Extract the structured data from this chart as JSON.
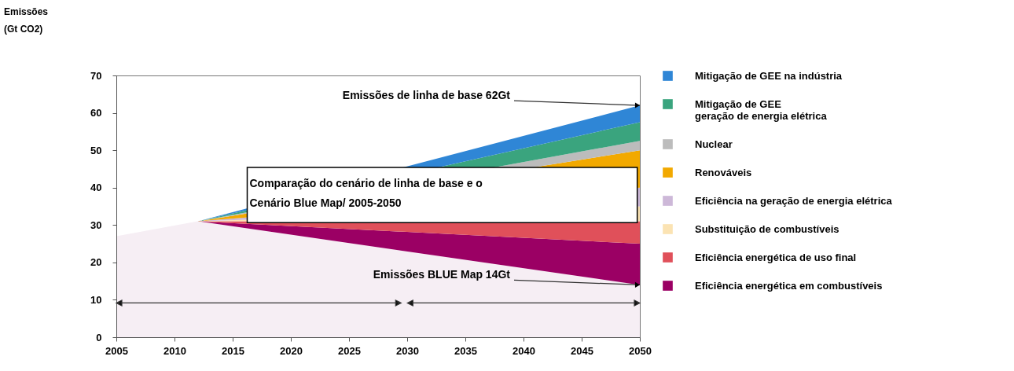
{
  "chart_data": {
    "type": "area",
    "stacked": true,
    "x": [
      2005,
      2012,
      2050
    ],
    "xlim": [
      2005,
      2050
    ],
    "xticks": [
      2005,
      2010,
      2015,
      2020,
      2025,
      2030,
      2035,
      2040,
      2045,
      2050
    ],
    "ylim": [
      0,
      70
    ],
    "yticks": [
      0,
      10,
      20,
      30,
      40,
      50,
      60,
      70
    ],
    "grid": false,
    "legend": "right",
    "series": [
      {
        "color": "#f6eef4",
        "values": [
          27,
          31,
          14
        ]
      },
      {
        "name": "Eficiência energética em combustíveis",
        "color": "#9b0064",
        "values": [
          0,
          0,
          11
        ]
      },
      {
        "name": "Eficiência energética de uso final",
        "color": "#e0505a",
        "values": [
          0,
          0,
          6
        ]
      },
      {
        "name": "Substituição de combustíveis",
        "color": "#fbe3b3",
        "values": [
          0,
          0,
          4
        ]
      },
      {
        "name": "Eficiência na geração de energia elétrica",
        "color": "#cdb8d8",
        "values": [
          0,
          0,
          5
        ]
      },
      {
        "name": "Renováveis",
        "color": "#f2a900",
        "values": [
          0,
          0,
          10
        ]
      },
      {
        "name": "Nuclear",
        "color": "#bcbcbc",
        "values": [
          0,
          0,
          2.5
        ]
      },
      {
        "name": "Mitigação de GEE\ngeração de energia elétrica",
        "color": "#3aa47e",
        "values": [
          0,
          0,
          5
        ]
      },
      {
        "name": "Mitigação de GEE na indústria",
        "color": "#2f86d6",
        "values": [
          0,
          0,
          4.5
        ]
      }
    ],
    "annotations": [
      "Emissões\n(Gt CO2)",
      {
        "text": "Emissões de linha de base 62Gt",
        "x": 2050,
        "y": 62
      },
      {
        "text": "Emissões BLUE Map 14Gt",
        "x": 2050,
        "y": 14
      },
      "Comparação do cenário de linha de base e o\nCenário Blue Map/  2005-2050"
    ]
  }
}
